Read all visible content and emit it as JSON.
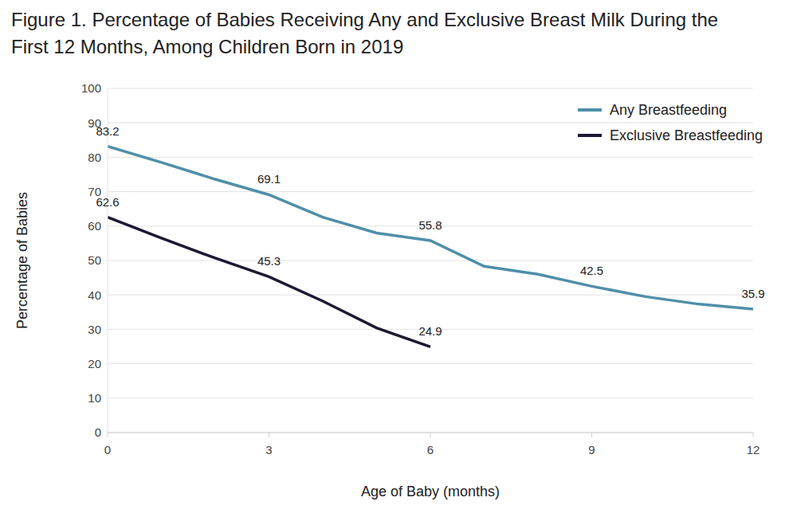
{
  "chart_data": {
    "type": "line",
    "title": "Figure 1. Percentage of Babies Receiving Any and Exclusive Breast Milk During the First 12 Months, Among Children Born in 2019",
    "x_label": "Age of Baby (months)",
    "y_label": "Percentage of Babies",
    "x": [
      0,
      1,
      2,
      3,
      4,
      5,
      6,
      7,
      8,
      9,
      10,
      11,
      12
    ],
    "series": [
      {
        "name": "Any Breastfeeding",
        "color": "#4f8fa9",
        "values": [
          83.2,
          78.5,
          73.6,
          69.1,
          62.6,
          58.0,
          55.8,
          48.3,
          46.0,
          42.5,
          39.5,
          37.3,
          35.9
        ],
        "value_labels": [
          "83.2",
          null,
          null,
          "69.1",
          null,
          null,
          "55.8",
          null,
          null,
          "42.5",
          null,
          null,
          "35.9"
        ]
      },
      {
        "name": "Exclusive Breastfeeding",
        "color": "#1b1934",
        "values": [
          62.6,
          56.5,
          50.7,
          45.3,
          38.2,
          30.4,
          24.9,
          null,
          null,
          null,
          null,
          null,
          null
        ],
        "value_labels": [
          "62.6",
          null,
          null,
          "45.3",
          null,
          null,
          "24.9",
          null,
          null,
          null,
          null,
          null,
          null
        ]
      }
    ],
    "xlim": [
      0,
      12
    ],
    "xticks": [
      0,
      3,
      6,
      9,
      12
    ],
    "ylim": [
      0,
      100
    ],
    "yticks": [
      0,
      10,
      20,
      30,
      40,
      50,
      60,
      70,
      80,
      90,
      100
    ],
    "grid": true,
    "legend": "upper right",
    "marker": "none"
  }
}
